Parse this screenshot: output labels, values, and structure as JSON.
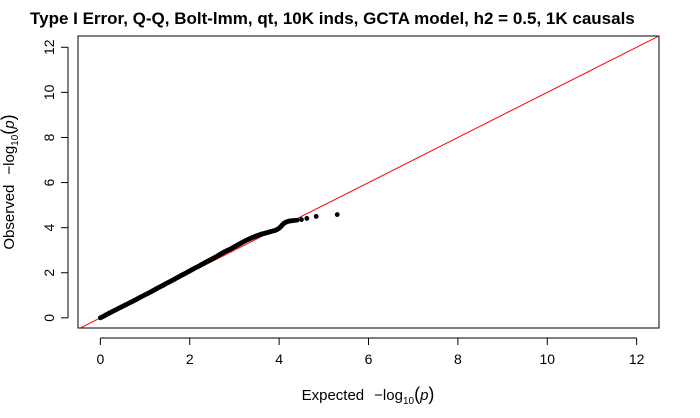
{
  "chart_data": {
    "type": "scatter",
    "title": "Type I Error, Q-Q, Bolt-lmm, qt, 10K inds, GCTA model, h2 = 0.5, 1K causals",
    "xlabel": {
      "prefix": "Expected",
      "neg": "−",
      "log": "log",
      "sub": "10",
      "open": "(",
      "p": "p",
      "close": ")"
    },
    "ylabel": {
      "prefix": "Observed",
      "neg": "−",
      "log": "log",
      "sub": "10",
      "open": "(",
      "p": "p",
      "close": ")"
    },
    "xlim": [
      -0.5,
      12.5
    ],
    "ylim": [
      -0.45,
      12.5
    ],
    "x_ticks": [
      0,
      2,
      4,
      6,
      8,
      10,
      12
    ],
    "y_ticks": [
      0,
      2,
      4,
      6,
      8,
      10,
      12
    ],
    "x_tick_labels": [
      "0",
      "2",
      "4",
      "6",
      "8",
      "10",
      "12"
    ],
    "y_tick_labels": [
      "0",
      "2",
      "4",
      "6",
      "8",
      "10",
      "12"
    ],
    "reference_line": {
      "slope": 1,
      "intercept": 0,
      "color": "#ff0000"
    },
    "point_color": "#000000",
    "series": [
      {
        "points": [
          [
            0.0,
            0.0
          ],
          [
            0.1,
            0.1
          ],
          [
            0.2,
            0.21
          ],
          [
            0.3,
            0.31
          ],
          [
            0.4,
            0.41
          ],
          [
            0.5,
            0.51
          ],
          [
            0.6,
            0.61
          ],
          [
            0.7,
            0.71
          ],
          [
            0.8,
            0.81
          ],
          [
            0.9,
            0.92
          ],
          [
            1.0,
            1.02
          ],
          [
            1.1,
            1.12
          ],
          [
            1.2,
            1.23
          ],
          [
            1.3,
            1.34
          ],
          [
            1.4,
            1.44
          ],
          [
            1.5,
            1.55
          ],
          [
            1.6,
            1.65
          ],
          [
            1.7,
            1.76
          ],
          [
            1.8,
            1.87
          ],
          [
            1.9,
            1.97
          ],
          [
            2.0,
            2.08
          ],
          [
            2.1,
            2.19
          ],
          [
            2.2,
            2.29
          ],
          [
            2.3,
            2.4
          ],
          [
            2.4,
            2.51
          ],
          [
            2.5,
            2.61
          ],
          [
            2.6,
            2.72
          ],
          [
            2.7,
            2.84
          ],
          [
            2.8,
            2.95
          ],
          [
            2.9,
            3.04
          ],
          [
            3.0,
            3.15
          ],
          [
            3.1,
            3.26
          ],
          [
            3.2,
            3.37
          ],
          [
            3.3,
            3.47
          ],
          [
            3.4,
            3.56
          ],
          [
            3.5,
            3.64
          ],
          [
            3.6,
            3.71
          ],
          [
            3.7,
            3.76
          ],
          [
            3.8,
            3.82
          ],
          [
            3.9,
            3.87
          ],
          [
            3.95,
            3.91
          ],
          [
            4.0,
            3.97
          ],
          [
            4.05,
            4.07
          ],
          [
            4.1,
            4.18
          ],
          [
            4.15,
            4.24
          ],
          [
            4.2,
            4.28
          ],
          [
            4.25,
            4.3
          ],
          [
            4.3,
            4.31
          ],
          [
            4.35,
            4.32
          ],
          [
            4.4,
            4.33
          ],
          [
            4.5,
            4.36
          ],
          [
            4.62,
            4.41
          ],
          [
            4.83,
            4.5
          ],
          [
            5.3,
            4.58
          ]
        ]
      }
    ]
  }
}
